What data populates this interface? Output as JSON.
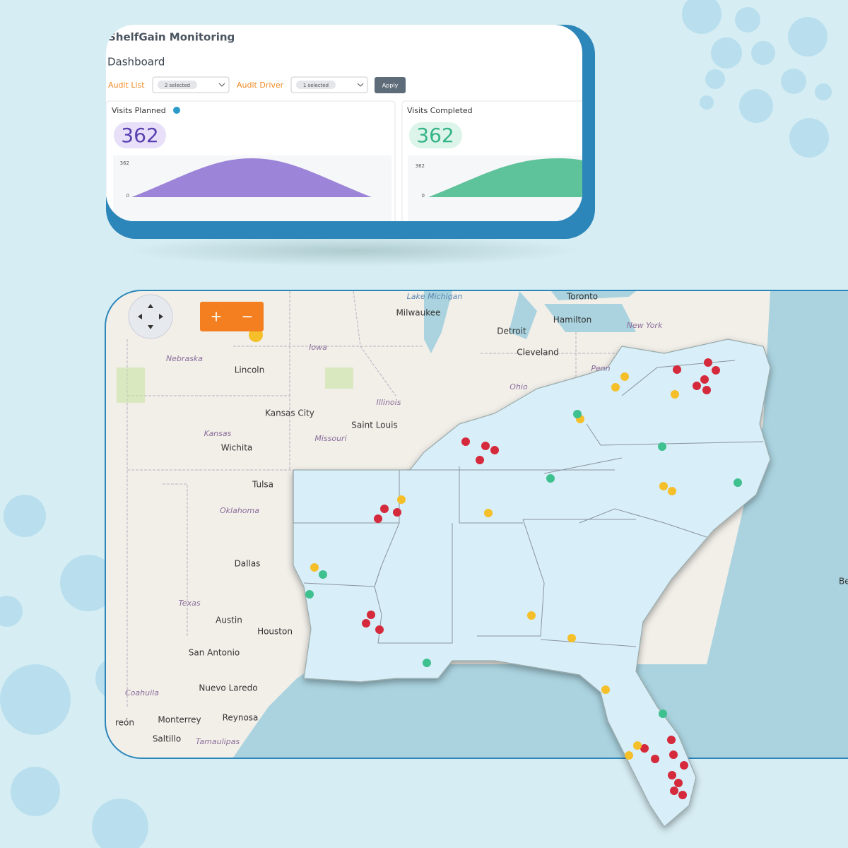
{
  "dashboard": {
    "app_title": "ShelfGain Monitoring",
    "page_title": "Dashboard",
    "filters": [
      {
        "label": "Audit List",
        "value": "2 selected"
      },
      {
        "label": "Audit Driver",
        "value": "1 selected"
      }
    ],
    "apply_button": "Apply",
    "cards": [
      {
        "title": "Visits Planned",
        "value": 362,
        "axis_labels": [
          362,
          0
        ]
      },
      {
        "title": "Visits Completed",
        "value": 362,
        "axis_labels": [
          362,
          0
        ]
      }
    ]
  },
  "map": {
    "zoom_in": "+",
    "zoom_out": "−",
    "places": [
      "Lake Michigan",
      "Toronto",
      "Milwaukee",
      "Detroit",
      "Hamilton",
      "New York",
      "Cleveland",
      "Iowa",
      "Nebraska",
      "Lincoln",
      "Penn",
      "Ohio",
      "Illinois",
      "Kansas City",
      "Saint Louis",
      "Kansas",
      "Missouri",
      "Wichita",
      "Tulsa",
      "Oklahoma",
      "Dallas",
      "Texas",
      "Austin",
      "Houston",
      "San Antonio",
      "Coahuila",
      "Nuevo Laredo",
      "Monterrey",
      "Reynosa",
      "Saltillo",
      "Tamaulipas",
      "reón",
      "Be"
    ]
  }
}
